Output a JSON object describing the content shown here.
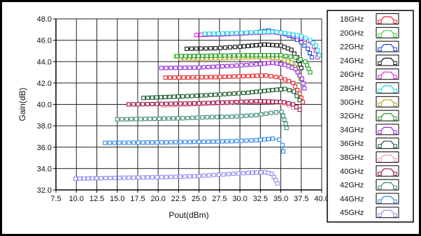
{
  "chart_data": {
    "type": "line",
    "title": "",
    "xlabel": "Pout(dBm)",
    "ylabel": "Gain(dB)",
    "xlim": [
      7.5,
      40.0
    ],
    "ylim": [
      32.0,
      48.0
    ],
    "x_ticks": [
      7.5,
      10.0,
      12.5,
      15.0,
      17.5,
      20.0,
      22.5,
      25.0,
      27.5,
      30.0,
      32.5,
      35.0,
      37.5,
      40.0
    ],
    "x_tick_labels": [
      "7.5",
      "10.0",
      "12.5",
      "15.0",
      "17.5",
      "20.0",
      "22.5",
      "25.0",
      "27.5",
      "30.0",
      "32.5",
      "35.0",
      "37.5",
      "40.0"
    ],
    "y_ticks": [
      32.0,
      34.0,
      36.0,
      38.0,
      40.0,
      42.0,
      44.0,
      46.0,
      48.0
    ],
    "y_tick_labels": [
      "32.0",
      "34.0",
      "36.0",
      "38.0",
      "40.0",
      "42.0",
      "44.0",
      "46.0",
      "48.0"
    ],
    "grid": true,
    "legend_position": "right",
    "series": [
      {
        "name": "18GHz",
        "color": "#e8242a",
        "points": [
          [
            20.9,
            42.5
          ],
          [
            27,
            42.55
          ],
          [
            31,
            42.65
          ],
          [
            33.2,
            42.7
          ],
          [
            35,
            42.5
          ],
          [
            36.5,
            42.0
          ],
          [
            37.3,
            41.0
          ],
          [
            37.7,
            40.2
          ]
        ]
      },
      {
        "name": "20GHz",
        "color": "#3ad63a",
        "points": [
          [
            22.2,
            44.5
          ],
          [
            27,
            44.55
          ],
          [
            31,
            44.6
          ],
          [
            33,
            44.6
          ],
          [
            35,
            44.4
          ],
          [
            36.5,
            43.8
          ],
          [
            37.3,
            42.8
          ],
          [
            37.6,
            42.0
          ]
        ]
      },
      {
        "name": "22GHz",
        "color": "#2244dd",
        "points": [
          [
            25.2,
            46.5
          ],
          [
            29,
            46.6
          ],
          [
            32,
            46.75
          ],
          [
            33.5,
            46.9
          ],
          [
            35,
            46.7
          ],
          [
            36.5,
            46.3
          ],
          [
            37.5,
            45.8
          ],
          [
            38.3,
            45.2
          ],
          [
            38.8,
            44.4
          ]
        ]
      },
      {
        "name": "24GHz",
        "color": "#111111",
        "points": [
          [
            23.5,
            45.2
          ],
          [
            27,
            45.25
          ],
          [
            30,
            45.4
          ],
          [
            33,
            45.6
          ],
          [
            35,
            45.5
          ],
          [
            36.3,
            45.1
          ],
          [
            37,
            44.4
          ],
          [
            37.5,
            43.4
          ]
        ]
      },
      {
        "name": "26GHz",
        "color": "#e020d8",
        "points": [
          [
            24.7,
            46.5
          ],
          [
            28,
            46.55
          ],
          [
            32,
            46.7
          ],
          [
            34,
            46.75
          ],
          [
            36,
            46.55
          ],
          [
            37.5,
            46.2
          ],
          [
            38.8,
            45.8
          ],
          [
            39.3,
            45.0
          ],
          [
            39.5,
            44.4
          ]
        ]
      },
      {
        "name": "28GHz",
        "color": "#22d8e8",
        "points": [
          [
            25.7,
            46.6
          ],
          [
            29,
            46.65
          ],
          [
            32,
            46.75
          ],
          [
            34,
            46.8
          ],
          [
            36,
            46.6
          ],
          [
            37.5,
            46.4
          ],
          [
            38.6,
            46.0
          ],
          [
            39.3,
            45.5
          ],
          [
            39.7,
            44.6
          ]
        ]
      },
      {
        "name": "30GHz",
        "color": "#b8a020",
        "points": [
          [
            22.7,
            44.3
          ],
          [
            27,
            44.3
          ],
          [
            31,
            44.4
          ],
          [
            33,
            44.45
          ],
          [
            35,
            44.3
          ],
          [
            36.3,
            43.9
          ],
          [
            37.1,
            43.1
          ],
          [
            37.5,
            42.4
          ]
        ]
      },
      {
        "name": "32GHz",
        "color": "#22a022",
        "points": [
          [
            22.3,
            44.5
          ],
          [
            27,
            44.55
          ],
          [
            31,
            44.6
          ],
          [
            33,
            44.6
          ],
          [
            35,
            44.6
          ],
          [
            36.8,
            44.4
          ],
          [
            38,
            44.0
          ],
          [
            38.6,
            43.0
          ]
        ]
      },
      {
        "name": "34GHz",
        "color": "#9a2ae0",
        "points": [
          [
            20.4,
            43.4
          ],
          [
            25,
            43.45
          ],
          [
            29,
            43.6
          ],
          [
            32,
            43.75
          ],
          [
            34,
            43.9
          ],
          [
            35.5,
            43.7
          ],
          [
            36.8,
            43.3
          ],
          [
            37.6,
            42.4
          ],
          [
            37.9,
            41.5
          ]
        ]
      },
      {
        "name": "36GHz",
        "color": "#1a5a2a",
        "points": [
          [
            18.2,
            40.6
          ],
          [
            23,
            40.75
          ],
          [
            27,
            40.9
          ],
          [
            31,
            41.1
          ],
          [
            33.5,
            41.3
          ],
          [
            35.5,
            41.45
          ],
          [
            36.6,
            41.2
          ],
          [
            37.3,
            40.4
          ]
        ]
      },
      {
        "name": "38GHz",
        "color": "#f2a0a8",
        "points": [
          [
            20.6,
            39.9
          ],
          [
            24,
            40.0
          ],
          [
            27,
            40.1
          ],
          [
            30,
            40.2
          ],
          [
            32,
            40.25
          ],
          [
            34,
            40.2
          ],
          [
            35.5,
            40.1
          ],
          [
            36.5,
            39.7
          ]
        ]
      },
      {
        "name": "40GHz",
        "color": "#a01040",
        "points": [
          [
            16.4,
            40.0
          ],
          [
            21,
            40.05
          ],
          [
            25,
            40.1
          ],
          [
            29,
            40.2
          ],
          [
            32,
            40.3
          ],
          [
            34,
            40.25
          ],
          [
            35.4,
            40.2
          ],
          [
            36.5,
            40.0
          ],
          [
            37.3,
            39.5
          ]
        ]
      },
      {
        "name": "42GHz",
        "color": "#3c8a78",
        "points": [
          [
            15.0,
            38.6
          ],
          [
            19,
            38.65
          ],
          [
            23,
            38.7
          ],
          [
            26,
            38.8
          ],
          [
            29,
            38.85
          ],
          [
            32,
            39.0
          ],
          [
            33.8,
            39.2
          ],
          [
            35.1,
            39.3
          ],
          [
            35.6,
            38.2
          ],
          [
            35.7,
            37.8
          ]
        ]
      },
      {
        "name": "44GHz",
        "color": "#3388ee",
        "points": [
          [
            13.5,
            36.4
          ],
          [
            17,
            36.42
          ],
          [
            21,
            36.45
          ],
          [
            25,
            36.5
          ],
          [
            29,
            36.55
          ],
          [
            32,
            36.65
          ],
          [
            34,
            36.8
          ],
          [
            34.8,
            36.7
          ],
          [
            35.2,
            36.2
          ],
          [
            35.3,
            35.6
          ]
        ]
      },
      {
        "name": "45GHz",
        "color": "#8f8bf0",
        "points": [
          [
            9.9,
            33.05
          ],
          [
            13,
            33.1
          ],
          [
            17,
            33.15
          ],
          [
            21,
            33.2
          ],
          [
            25,
            33.3
          ],
          [
            28,
            33.45
          ],
          [
            31,
            33.6
          ],
          [
            33.1,
            33.65
          ],
          [
            33.9,
            33.5
          ],
          [
            34.4,
            32.9
          ],
          [
            34.6,
            32.6
          ]
        ]
      }
    ]
  }
}
